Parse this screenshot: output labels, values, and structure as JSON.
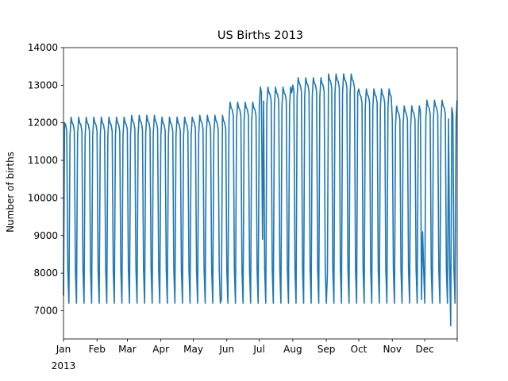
{
  "chart_data": {
    "type": "line",
    "title": "US Births 2013",
    "xlabel": "",
    "ylabel": "Number of births",
    "year_label": "2013",
    "series_color": "#1f77b4",
    "grid": false,
    "legend": "none",
    "xlim": [
      "2013-01-01",
      "2013-12-31"
    ],
    "ylim": [
      6250,
      14000
    ],
    "yticks": [
      7000,
      8000,
      9000,
      10000,
      11000,
      12000,
      13000,
      14000
    ],
    "xticks": [
      {
        "date": "2013-01-01",
        "label": "Jan"
      },
      {
        "date": "2013-02-01",
        "label": "Feb"
      },
      {
        "date": "2013-03-01",
        "label": "Mar"
      },
      {
        "date": "2013-04-01",
        "label": "Apr"
      },
      {
        "date": "2013-05-01",
        "label": "May"
      },
      {
        "date": "2013-06-01",
        "label": "Jun"
      },
      {
        "date": "2013-07-01",
        "label": "Jul"
      },
      {
        "date": "2013-08-01",
        "label": "Aug"
      },
      {
        "date": "2013-09-01",
        "label": "Sep"
      },
      {
        "date": "2013-10-01",
        "label": "Oct"
      },
      {
        "date": "2013-11-01",
        "label": "Nov"
      },
      {
        "date": "2013-12-01",
        "label": "Dec"
      }
    ],
    "weekly_pattern": {
      "note": "Daily values: weekdays near the weekday level, Saturdays ~8100, Sundays ~7200",
      "saturday": 8100,
      "sunday": 7200
    },
    "monthly_weekday_level": [
      {
        "month": "Jan",
        "weekday": 11900
      },
      {
        "month": "Feb",
        "weekday": 11900
      },
      {
        "month": "Mar",
        "weekday": 11950
      },
      {
        "month": "Apr",
        "weekday": 11900
      },
      {
        "month": "May",
        "weekday": 11950
      },
      {
        "month": "Jun",
        "weekday": 12300
      },
      {
        "month": "Jul",
        "weekday": 12700
      },
      {
        "month": "Aug",
        "weekday": 12950
      },
      {
        "month": "Sep",
        "weekday": 13050
      },
      {
        "month": "Oct",
        "weekday": 12650
      },
      {
        "month": "Nov",
        "weekday": 12200
      },
      {
        "month": "Dec",
        "weekday": 12350
      }
    ]
  }
}
